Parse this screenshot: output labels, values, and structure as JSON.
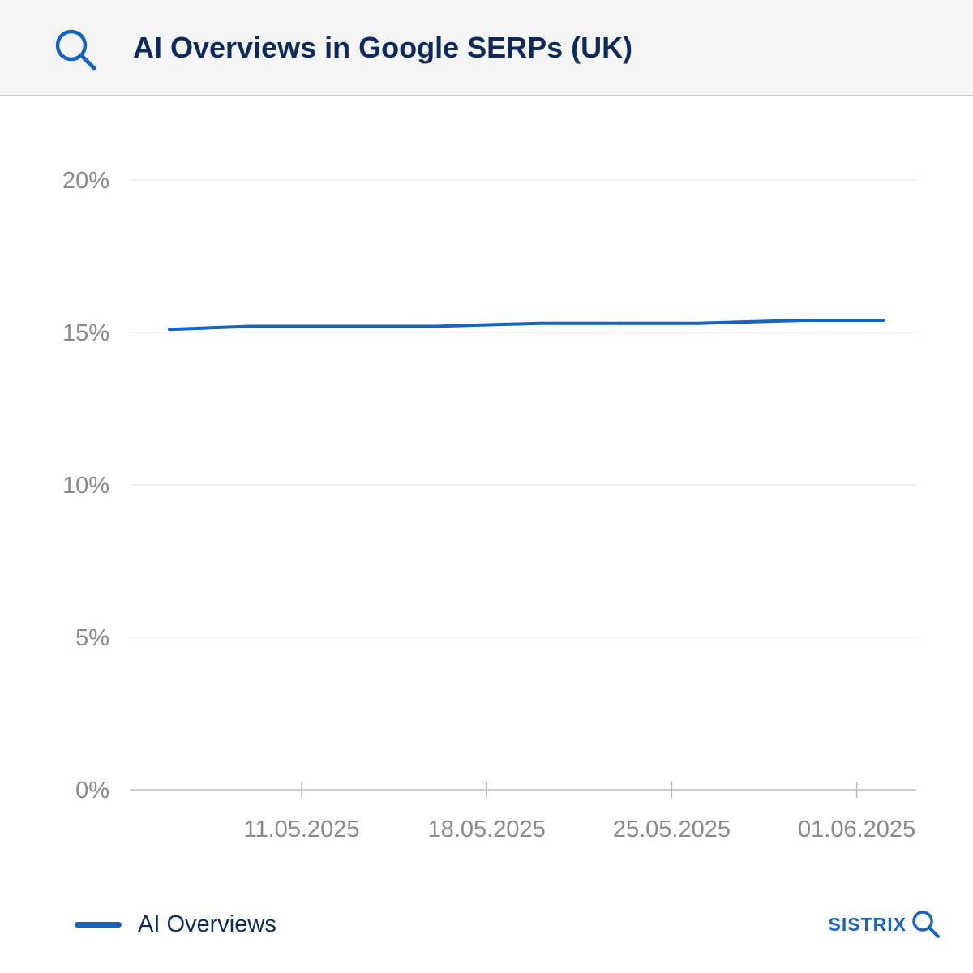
{
  "header": {
    "title": "AI Overviews in Google SERPs (UK)",
    "icon": "search-icon"
  },
  "colors": {
    "accent": "#1565c0",
    "title": "#0d2a5c",
    "axis_text": "#8a8a8a",
    "grid": "#e6e6e6"
  },
  "chart_data": {
    "type": "line",
    "title": "AI Overviews in Google SERPs (UK)",
    "xlabel": "",
    "ylabel": "",
    "ylim": [
      0,
      20
    ],
    "y_ticks": [
      "0%",
      "5%",
      "10%",
      "15%",
      "20%"
    ],
    "x_tick_dates": [
      "2025-05-11",
      "2025-05-18",
      "2025-05-25",
      "2025-06-01"
    ],
    "x_tick_labels": [
      "11.05.2025",
      "18.05.2025",
      "25.05.2025",
      "01.06.2025"
    ],
    "grid": true,
    "legend": "bottom-left",
    "series": [
      {
        "name": "AI Overviews",
        "color": "#1565c0",
        "points": [
          {
            "x": "2025-05-06",
            "y": 15.1
          },
          {
            "x": "2025-05-09",
            "y": 15.2
          },
          {
            "x": "2025-05-13",
            "y": 15.2
          },
          {
            "x": "2025-05-16",
            "y": 15.2
          },
          {
            "x": "2025-05-20",
            "y": 15.3
          },
          {
            "x": "2025-05-23",
            "y": 15.3
          },
          {
            "x": "2025-05-26",
            "y": 15.3
          },
          {
            "x": "2025-05-30",
            "y": 15.4
          },
          {
            "x": "2025-06-02",
            "y": 15.4
          }
        ]
      }
    ]
  },
  "legend": {
    "label": "AI Overviews"
  },
  "brand": {
    "name": "SISTRIX",
    "icon": "search-icon"
  }
}
